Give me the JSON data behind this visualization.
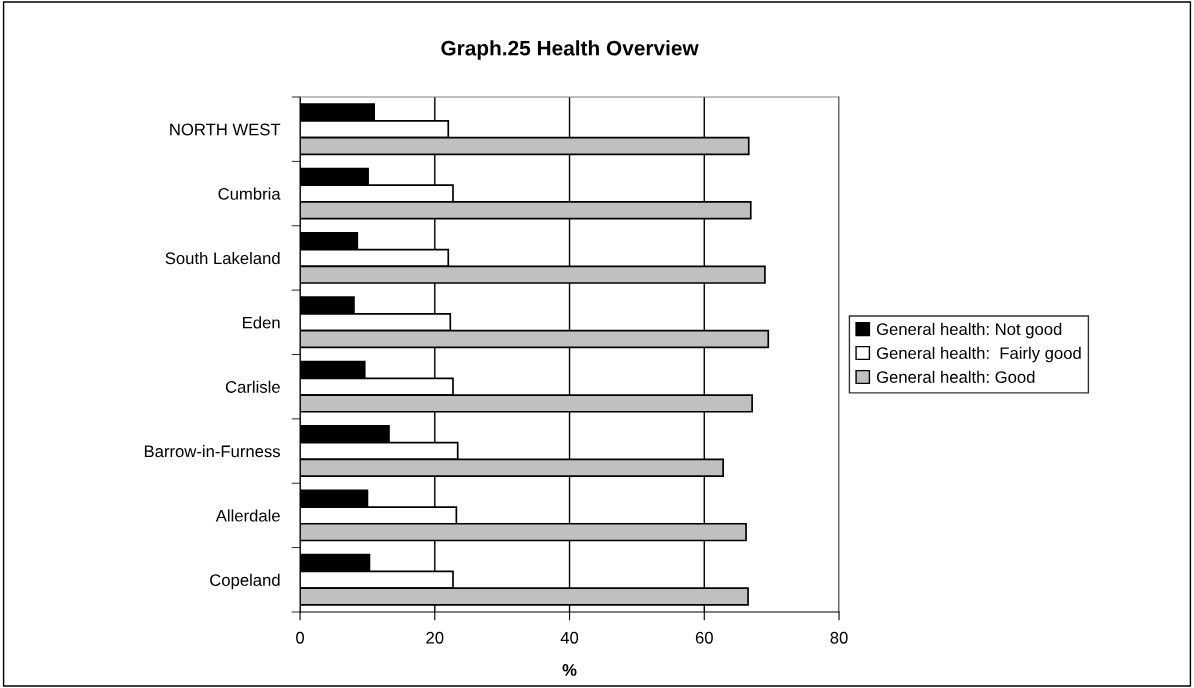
{
  "chart_data": {
    "type": "bar",
    "orientation": "horizontal",
    "title": "Graph.25 Health Overview",
    "xlabel": "%",
    "categories": [
      "NORTH WEST",
      "Cumbria",
      "South Lakeland",
      "Eden",
      "Carlisle",
      "Barrow-in-Furness",
      "Allerdale",
      "Copeland"
    ],
    "series": [
      {
        "name": "General health: Not good",
        "color": "#000000",
        "values": [
          11.0,
          10.1,
          8.5,
          8.0,
          9.6,
          13.2,
          10.0,
          10.3
        ]
      },
      {
        "name": "General health:  Fairly good",
        "color": "#ffffff",
        "values": [
          22.0,
          22.7,
          22.0,
          22.3,
          22.7,
          23.4,
          23.2,
          22.7
        ]
      },
      {
        "name": "General health: Good",
        "color": "#c0c0c0",
        "values": [
          66.6,
          66.9,
          69.0,
          69.5,
          67.1,
          62.8,
          66.2,
          66.5
        ]
      }
    ],
    "xlim": [
      0,
      80
    ],
    "xticks": [
      0,
      20,
      40,
      60,
      80
    ],
    "grid": "x",
    "legend": "right"
  }
}
